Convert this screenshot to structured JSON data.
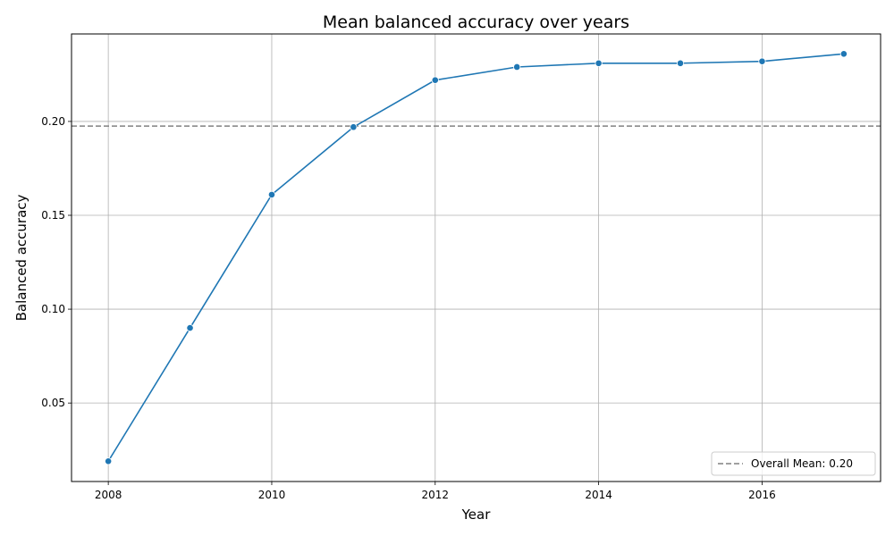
{
  "chart_data": {
    "type": "line",
    "title": "Mean balanced accuracy over years",
    "xlabel": "Year",
    "ylabel": "Balanced accuracy",
    "x": [
      2008,
      2009,
      2010,
      2011,
      2012,
      2013,
      2014,
      2015,
      2016,
      2017
    ],
    "series": [
      {
        "values": [
          0.019,
          0.09,
          0.161,
          0.197,
          0.222,
          0.229,
          0.231,
          0.231,
          0.232,
          0.236
        ],
        "color": "#1f77b4"
      }
    ],
    "reference_line": {
      "value": 0.1975,
      "label": "Overall Mean: 0.20",
      "color": "#808080",
      "style": "dashed"
    },
    "xticks": [
      2008,
      2010,
      2012,
      2014,
      2016
    ],
    "xtick_labels": [
      "2008",
      "2010",
      "2012",
      "2014",
      "2016"
    ],
    "yticks": [
      0.05,
      0.1,
      0.15,
      0.2
    ],
    "ytick_labels": [
      "0.05",
      "0.10",
      "0.15",
      "0.20"
    ],
    "xlim": [
      2007.55,
      2017.45
    ],
    "ylim": [
      0.0082,
      0.2466
    ],
    "grid": true,
    "legend_position": "lower-right"
  }
}
